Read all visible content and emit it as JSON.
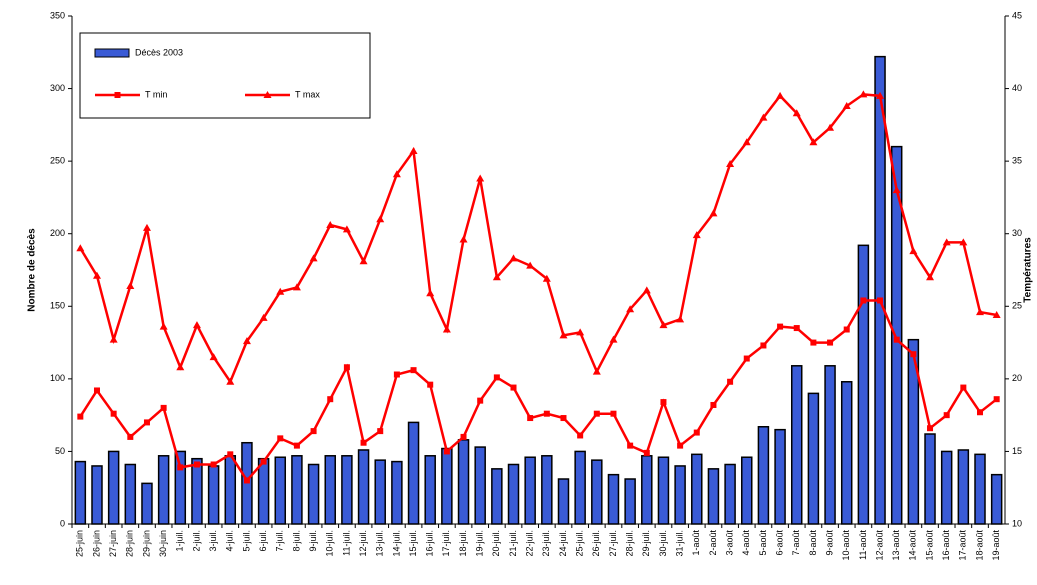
{
  "chart_data": {
    "type": "bar",
    "categories": [
      "25-juin",
      "26-juin",
      "27-juin",
      "28-juin",
      "29-juin",
      "30-juin",
      "1-juil.",
      "2-juil.",
      "3-juil.",
      "4-juil.",
      "5-juil.",
      "6-juil.",
      "7-juil.",
      "8-juil.",
      "9-juil.",
      "10-juil.",
      "11-juil.",
      "12-juil.",
      "13-juil.",
      "14-juil.",
      "15-juil.",
      "16-juil.",
      "17-juil.",
      "18-juil.",
      "19-juil.",
      "20-juil.",
      "21-juil.",
      "22-juil.",
      "23-juil.",
      "24-juil.",
      "25-juil.",
      "26-juil.",
      "27-juil.",
      "28-juil.",
      "29-juil.",
      "30-juil.",
      "31-juil.",
      "1-août",
      "2-août",
      "3-août",
      "4-août",
      "5-août",
      "6-août",
      "7-août",
      "8-août",
      "9-août",
      "10-août",
      "11-août",
      "12-août",
      "13-août",
      "14-août",
      "15-août",
      "16-août",
      "17-août",
      "18-août",
      "19-août"
    ],
    "series": [
      {
        "name": "Décès 2003",
        "color": "#3a5bd6",
        "type": "bar",
        "values": [
          43,
          40,
          50,
          41,
          28,
          47,
          50,
          45,
          40,
          47,
          56,
          45,
          46,
          47,
          41,
          47,
          47,
          51,
          44,
          43,
          70,
          47,
          52,
          58,
          53,
          38,
          41,
          46,
          47,
          31,
          50,
          44,
          34,
          31,
          47,
          46,
          40,
          48,
          38,
          41,
          46,
          67,
          65,
          109,
          90,
          109,
          98,
          192,
          322,
          260,
          127,
          62,
          50,
          51,
          48,
          34
        ]
      },
      {
        "name": "T min",
        "color": "#ff0000",
        "type": "line",
        "axis": "y2",
        "marker": "square",
        "values": [
          17.4,
          19.2,
          17.6,
          16.0,
          17.0,
          18.0,
          13.9,
          14.1,
          14.1,
          14.8,
          13.0,
          14.3,
          15.9,
          15.4,
          16.4,
          18.6,
          20.8,
          15.6,
          16.4,
          20.3,
          20.6,
          19.6,
          15.0,
          16.0,
          18.5,
          20.1,
          19.4,
          17.3,
          17.6,
          17.3,
          16.1,
          17.6,
          17.6,
          15.4,
          14.9,
          18.4,
          15.4,
          16.3,
          18.2,
          19.8,
          21.4,
          22.3,
          23.6,
          23.5,
          22.5,
          22.5,
          23.4,
          25.4,
          25.4,
          22.7,
          21.7,
          16.6,
          17.5,
          19.4,
          17.7,
          18.6
        ]
      },
      {
        "name": "T max",
        "color": "#ff0000",
        "type": "line",
        "axis": "y2",
        "marker": "triangle",
        "values": [
          29.0,
          27.1,
          22.7,
          26.4,
          30.4,
          23.6,
          20.8,
          23.7,
          21.5,
          19.8,
          22.6,
          24.2,
          26.0,
          26.3,
          28.3,
          30.6,
          30.3,
          28.1,
          31.0,
          34.1,
          35.7,
          25.9,
          23.4,
          29.6,
          33.8,
          27.0,
          28.3,
          27.8,
          26.9,
          23.0,
          23.2,
          20.5,
          22.7,
          24.8,
          26.1,
          23.7,
          24.1,
          29.9,
          31.4,
          34.8,
          36.3,
          38.0,
          39.5,
          38.3,
          36.3,
          37.3,
          38.8,
          39.6,
          39.5,
          33.0,
          28.8,
          27.0,
          29.4,
          29.4,
          24.6,
          24.4
        ]
      }
    ],
    "ylabel": "Nombre de décès",
    "y2label": "Températures",
    "ylim": [
      0,
      350
    ],
    "yticks": [
      0,
      50,
      100,
      150,
      200,
      250,
      300,
      350
    ],
    "y2lim": [
      10,
      45
    ],
    "y2ticks": [
      10,
      15,
      20,
      25,
      30,
      35,
      40,
      45
    ],
    "legend": "upper left"
  }
}
